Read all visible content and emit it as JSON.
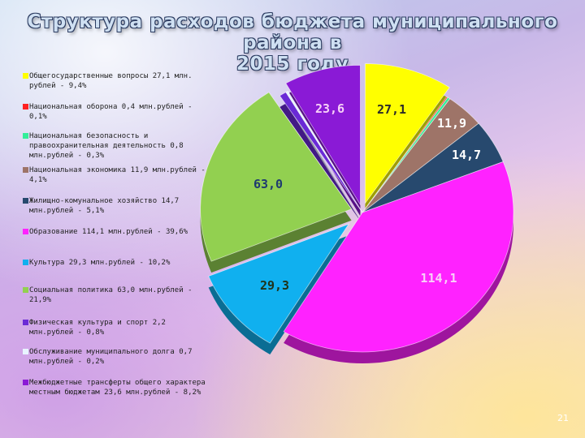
{
  "page": {
    "title_line1": "Структура расходов бюджета муниципального района в",
    "title_line2": "2015 году",
    "page_number": "21"
  },
  "chart_data": {
    "type": "pie",
    "unit": "млн.рублей",
    "slices": [
      {
        "label": "Общегосударственные вопросы 27,1 млн. рублей - 9,4%",
        "value": 27.1,
        "data_label": "27,1",
        "color": "#ffff00"
      },
      {
        "label": "Национальная оборона 0,4 млн.рублей - 0,1%",
        "value": 0.4,
        "data_label": "",
        "color": "#ff2020"
      },
      {
        "label": "Национальная безопасность и правоохранительная деятельность 0,8 млн.рублей - 0,3%",
        "value": 0.8,
        "data_label": "",
        "color": "#33ee99"
      },
      {
        "label": "Национальная экономика 11,9 млн.рублей - 4,1%",
        "value": 11.9,
        "data_label": "11,9",
        "color": "#9e7468"
      },
      {
        "label": "Жилищно-комунальное хозяйство 14,7 млн.рублей - 5,1%",
        "value": 14.7,
        "data_label": "14,7",
        "color": "#27496e"
      },
      {
        "label": "Образование 114,1 млн.рублей - 39,6%",
        "value": 114.1,
        "data_label": "114,1",
        "color": "#ff22ff"
      },
      {
        "label": "Культура 29,3 млн.рублей - 10,2%",
        "value": 29.3,
        "data_label": "29,3",
        "color": "#10b0ef"
      },
      {
        "label": "Социальная политика 63,0 млн.рублей - 21,9%",
        "value": 63.0,
        "data_label": "63,0",
        "color": "#92d050"
      },
      {
        "label": "Физическая культура и спорт 2,2 млн.рублей - 0,8%",
        "value": 2.2,
        "data_label": "",
        "color": "#6a2ad6"
      },
      {
        "label": "Обслуживание муниципального долга 0,7 млн.рублей - 0,2%",
        "value": 0.7,
        "data_label": "",
        "color": "#e8f4ff"
      },
      {
        "label": "Межбюджетные трансферты общего характера местным бюджетам 23,6 млн.рублей - 8,2%",
        "value": 23.6,
        "data_label": "23,6",
        "color": "#8a1ad6"
      }
    ]
  }
}
